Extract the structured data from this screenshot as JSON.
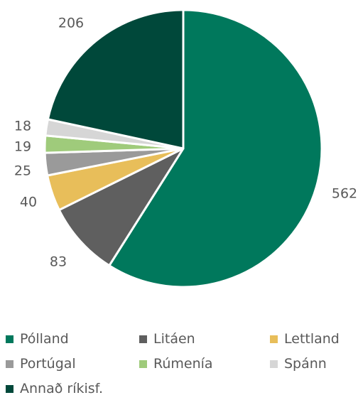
{
  "chart_data": {
    "type": "pie",
    "title": "",
    "categories": [
      "Pólland",
      "Litáen",
      "Lettland",
      "Portúgal",
      "Rúmenía",
      "Spánn",
      "Annað ríkisf."
    ],
    "values": [
      562,
      83,
      40,
      25,
      19,
      18,
      206
    ],
    "colors": [
      "#00785c",
      "#5f5f5f",
      "#e8be5a",
      "#9a9a9a",
      "#9fcb7b",
      "#d6d6d6",
      "#00483a"
    ],
    "data_labels": [
      "562",
      "83",
      "40",
      "25",
      "19",
      "18",
      "206"
    ],
    "legend_position": "bottom",
    "start_angle_deg": 0,
    "direction": "clockwise"
  }
}
